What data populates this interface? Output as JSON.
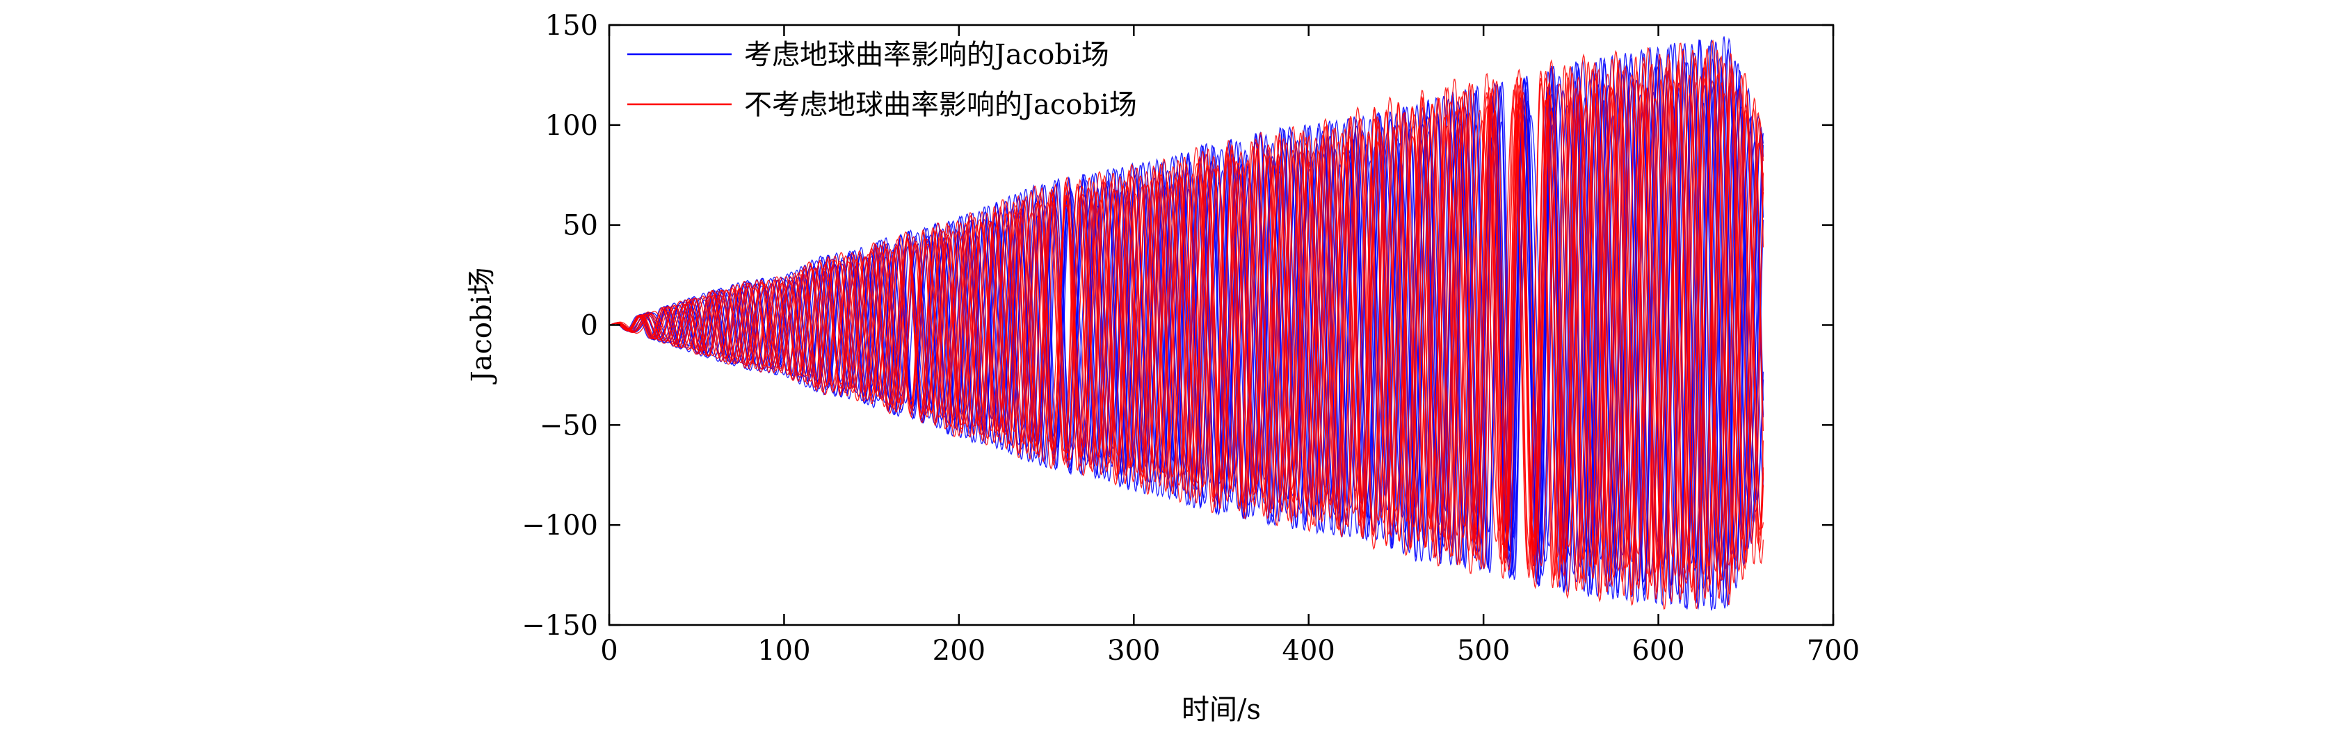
{
  "chart_data": {
    "type": "line",
    "title": "",
    "xlabel": "时间/s",
    "ylabel": "Jacobi场",
    "xlim": [
      0,
      700
    ],
    "ylim": [
      -150,
      150
    ],
    "x_ticks": [
      "0",
      "100",
      "200",
      "300",
      "400",
      "500",
      "600",
      "700"
    ],
    "y_ticks": [
      "150",
      "100",
      "50",
      "0",
      "−50",
      "−100",
      "−150"
    ],
    "grid": false,
    "legend_position": "top-left",
    "series": [
      {
        "name": "考虑地球曲率影响的Jacobi场",
        "color": "#0000ff",
        "x": [
          0,
          40,
          60,
          80,
          100,
          120,
          140,
          160,
          180,
          200,
          220,
          240,
          260,
          280,
          300,
          320,
          340,
          360,
          380,
          400,
          420,
          440,
          460,
          480,
          500,
          520,
          540,
          560,
          580,
          600,
          620,
          640,
          660
        ],
        "envelope_max": [
          0,
          12,
          18,
          23,
          25,
          35,
          38,
          45,
          50,
          55,
          62,
          70,
          75,
          78,
          82,
          85,
          92,
          95,
          100,
          102,
          105,
          108,
          112,
          118,
          122,
          125,
          132,
          135,
          138,
          142,
          145,
          147,
          100
        ],
        "envelope_min": [
          0,
          -12,
          -18,
          -23,
          -26,
          -35,
          -38,
          -45,
          -50,
          -58,
          -62,
          -70,
          -75,
          -78,
          -85,
          -88,
          -95,
          -98,
          -102,
          -105,
          -108,
          -110,
          -120,
          -122,
          -125,
          -130,
          -135,
          -138,
          -140,
          -142,
          -145,
          -145,
          -95
        ]
      },
      {
        "name": "不考虑地球曲率影响的Jacobi场",
        "color": "#ff0000",
        "x": [
          0,
          40,
          60,
          80,
          100,
          120,
          140,
          160,
          180,
          200,
          220,
          240,
          260,
          280,
          300,
          320,
          340,
          360,
          380,
          400,
          420,
          440,
          460,
          480,
          500,
          520,
          540,
          560,
          580,
          600,
          620,
          640,
          660
        ],
        "envelope_max": [
          0,
          12,
          18,
          23,
          25,
          35,
          38,
          45,
          50,
          55,
          62,
          70,
          75,
          78,
          82,
          85,
          92,
          95,
          100,
          102,
          108,
          115,
          118,
          125,
          128,
          130,
          135,
          138,
          140,
          142,
          145,
          145,
          110
        ],
        "envelope_min": [
          0,
          -12,
          -18,
          -23,
          -26,
          -35,
          -38,
          -45,
          -50,
          -58,
          -62,
          -70,
          -75,
          -78,
          -85,
          -88,
          -95,
          -98,
          -102,
          -105,
          -108,
          -115,
          -118,
          -125,
          -128,
          -130,
          -138,
          -140,
          -142,
          -145,
          -145,
          -143,
          -120
        ]
      }
    ]
  }
}
